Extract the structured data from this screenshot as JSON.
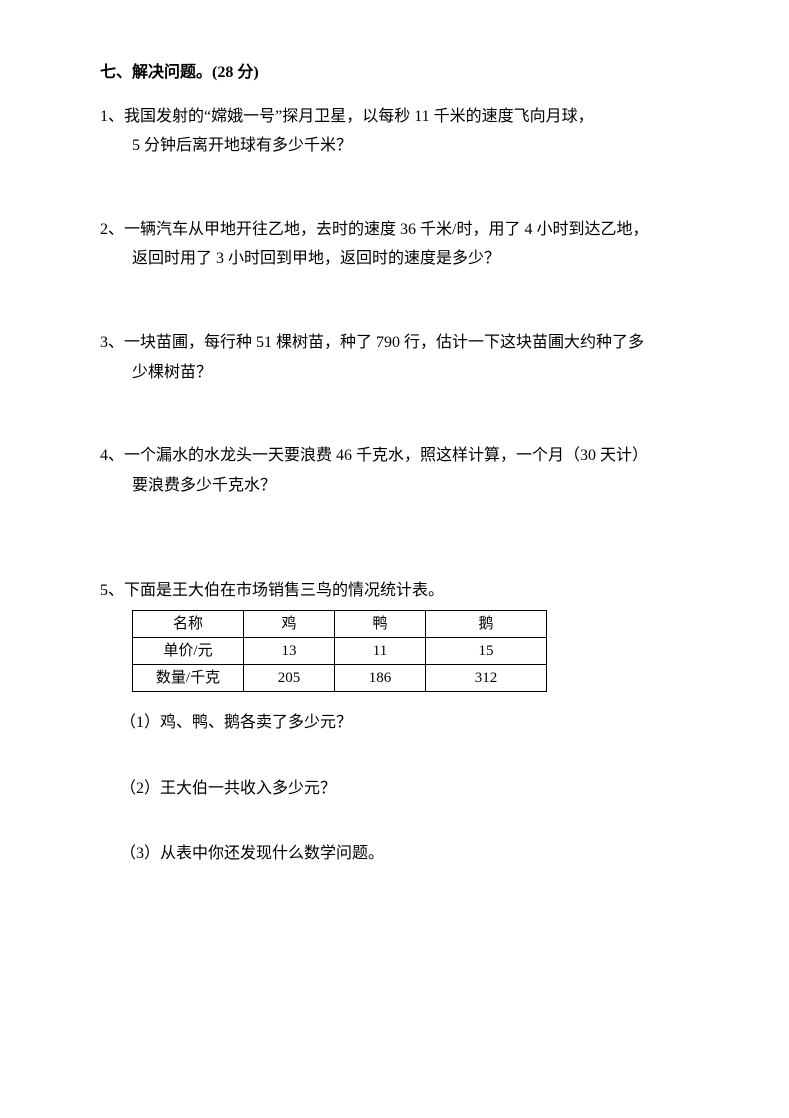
{
  "section": {
    "title": "七、解决问题。(28 分)"
  },
  "problems": {
    "p1": {
      "num": "1、",
      "line1": "我国发射的“嫦娥一号”探月卫星，以每秒 11 千米的速度飞向月球，",
      "line2": "5 分钟后离开地球有多少千米？"
    },
    "p2": {
      "num": "2、",
      "line1": "一辆汽车从甲地开往乙地，去时的速度 36 千米/时，用了 4 小时到达乙地，",
      "line2": "返回时用了 3 小时回到甲地，返回时的速度是多少？"
    },
    "p3": {
      "num": "3、",
      "line1": "一块苗圃，每行种 51 棵树苗，种了 790 行，估计一下这块苗圃大约种了多",
      "line2": "少棵树苗？"
    },
    "p4": {
      "num": "4、",
      "line1": "一个漏水的水龙头一天要浪费 46 千克水，照这样计算，一个月（30 天计）",
      "line2": "要浪费多少千克水？"
    },
    "p5": {
      "num": "5、",
      "line1": "下面是王大伯在市场销售三鸟的情况统计表。",
      "table": {
        "header": [
          "名称",
          "鸡",
          "鸭",
          "鹅"
        ],
        "row_price_label": "单价/元",
        "row_price": [
          "13",
          "11",
          "15"
        ],
        "row_qty_label": "数量/千克",
        "row_qty": [
          "205",
          "186",
          "312"
        ]
      },
      "sub1": "（1）鸡、鸭、鹅各卖了多少元？",
      "sub2": "（2）王大伯一共收入多少元？",
      "sub3": "（3）从表中你还发现什么数学问题。"
    }
  }
}
